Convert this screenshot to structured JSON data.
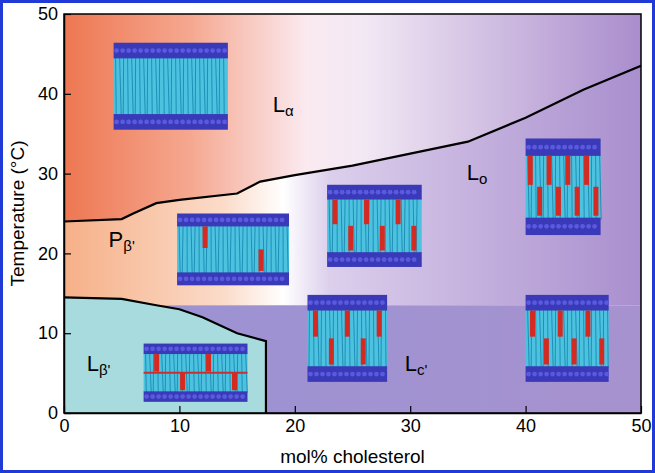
{
  "chart_data": {
    "type": "line",
    "xlabel": "mol% cholesterol",
    "ylabel": "Temperature (°C)",
    "xlim": [
      0,
      50
    ],
    "ylim": [
      0,
      50
    ],
    "xticks": [
      0,
      10,
      20,
      30,
      40,
      50
    ],
    "yticks": [
      0,
      10,
      20,
      30,
      40,
      50
    ],
    "series": [
      {
        "x": [
          0,
          5,
          6,
          8,
          10,
          15,
          17,
          20,
          25,
          30,
          35,
          40,
          45,
          50
        ],
        "values": [
          24,
          24.3,
          25,
          26.3,
          26.7,
          27.5,
          29,
          29.8,
          31,
          32.5,
          34,
          37,
          40.5,
          43.5
        ],
        "color": "#000000",
        "line_style": "solid"
      },
      {
        "x": [
          0,
          5,
          8,
          10,
          12,
          15,
          17.5,
          17.5
        ],
        "values": [
          14.5,
          14.3,
          13.5,
          13,
          12,
          10,
          9,
          0
        ],
        "color": "#000000",
        "line_style": "solid"
      },
      {
        "x": [
          0,
          50
        ],
        "values": [
          13.5,
          13.5
        ],
        "line_style": "none"
      }
    ],
    "annotations": [
      {
        "text": "L",
        "sub": "α",
        "x": 19,
        "y": 38.5
      },
      {
        "text": "P",
        "sub": "β'",
        "x": 5,
        "y": 21.5
      },
      {
        "text": "L",
        "sub": "β'",
        "x": 3,
        "y": 6
      },
      {
        "text": "L",
        "sub": "c'",
        "x": 30.5,
        "y": 6
      },
      {
        "text": "L",
        "sub": "o",
        "x": 35.8,
        "y": 30
      }
    ]
  }
}
